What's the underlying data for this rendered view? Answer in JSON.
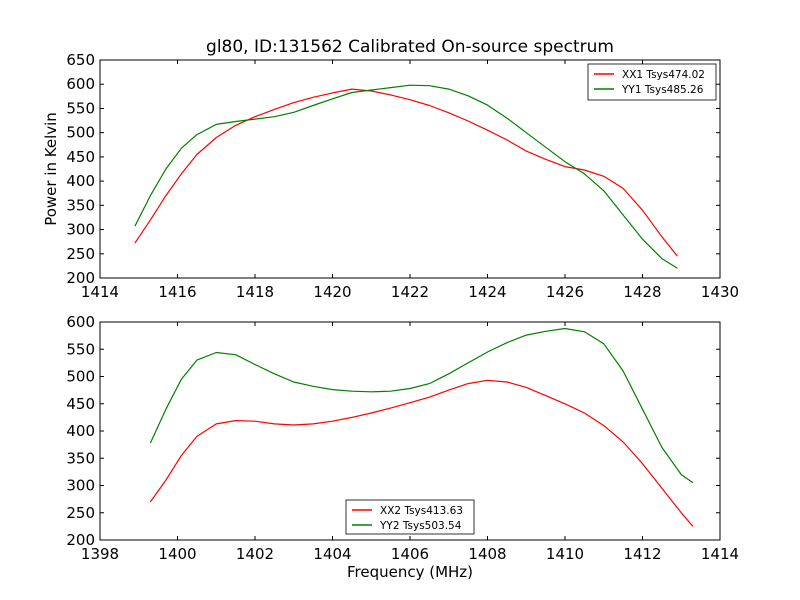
{
  "figure": {
    "title": "gl80, ID:131562 Calibrated On-source spectrum"
  },
  "chart_data": [
    {
      "type": "line",
      "title": "gl80, ID:131562 Calibrated On-source spectrum",
      "xlabel": "",
      "ylabel": "Power in Kelvin",
      "xlim": [
        1414,
        1430
      ],
      "ylim": [
        200,
        650
      ],
      "xticks": [
        1414,
        1416,
        1418,
        1420,
        1422,
        1424,
        1426,
        1428,
        1430
      ],
      "yticks": [
        200,
        250,
        300,
        350,
        400,
        450,
        500,
        550,
        600,
        650
      ],
      "grid": false,
      "legend": "top-right",
      "series": [
        {
          "name": "XX1 Tsys474.02",
          "color": "#ff0000",
          "x": [
            1414.9,
            1415.3,
            1415.7,
            1416.1,
            1416.5,
            1417.0,
            1417.5,
            1418.0,
            1418.5,
            1419.0,
            1419.5,
            1420.0,
            1420.5,
            1421.0,
            1421.5,
            1422.0,
            1422.5,
            1423.0,
            1423.5,
            1424.0,
            1424.5,
            1425.0,
            1425.5,
            1426.0,
            1426.5,
            1427.0,
            1427.5,
            1428.0,
            1428.5,
            1428.9
          ],
          "y": [
            272,
            320,
            370,
            415,
            455,
            490,
            515,
            533,
            548,
            562,
            573,
            582,
            590,
            586,
            578,
            568,
            556,
            541,
            524,
            505,
            485,
            462,
            445,
            430,
            423,
            410,
            385,
            340,
            285,
            245
          ]
        },
        {
          "name": "YY1 Tsys485.26",
          "color": "#008000",
          "x": [
            1414.9,
            1415.3,
            1415.7,
            1416.1,
            1416.5,
            1417.0,
            1417.5,
            1418.0,
            1418.5,
            1419.0,
            1419.5,
            1420.0,
            1420.5,
            1421.0,
            1421.5,
            1422.0,
            1422.5,
            1423.0,
            1423.5,
            1424.0,
            1424.5,
            1425.0,
            1425.5,
            1426.0,
            1426.5,
            1427.0,
            1427.5,
            1428.0,
            1428.5,
            1428.9
          ],
          "y": [
            307,
            370,
            425,
            468,
            496,
            517,
            523,
            528,
            533,
            542,
            556,
            570,
            583,
            588,
            593,
            598,
            597,
            590,
            576,
            557,
            530,
            500,
            470,
            440,
            415,
            380,
            330,
            280,
            240,
            220
          ]
        }
      ]
    },
    {
      "type": "line",
      "title": "",
      "xlabel": "Frequency (MHz)",
      "ylabel": "",
      "xlim": [
        1398,
        1414
      ],
      "ylim": [
        200,
        600
      ],
      "xticks": [
        1398,
        1400,
        1402,
        1404,
        1406,
        1408,
        1410,
        1412,
        1414
      ],
      "yticks": [
        200,
        250,
        300,
        350,
        400,
        450,
        500,
        550,
        600
      ],
      "grid": false,
      "legend": "bottom-center",
      "series": [
        {
          "name": "XX2 Tsys413.63",
          "color": "#ff0000",
          "x": [
            1399.3,
            1399.7,
            1400.1,
            1400.5,
            1401.0,
            1401.5,
            1402.0,
            1402.5,
            1403.0,
            1403.5,
            1404.0,
            1404.5,
            1405.0,
            1405.5,
            1406.0,
            1406.5,
            1407.0,
            1407.5,
            1408.0,
            1408.5,
            1409.0,
            1409.5,
            1410.0,
            1410.5,
            1411.0,
            1411.5,
            1412.0,
            1412.5,
            1413.0,
            1413.3
          ],
          "y": [
            270,
            310,
            355,
            390,
            413,
            419,
            418,
            413,
            411,
            413,
            418,
            425,
            433,
            442,
            452,
            462,
            475,
            487,
            493,
            490,
            480,
            465,
            450,
            433,
            410,
            380,
            340,
            295,
            250,
            225
          ]
        },
        {
          "name": "YY2 Tsys503.54",
          "color": "#008000",
          "x": [
            1399.3,
            1399.7,
            1400.1,
            1400.5,
            1401.0,
            1401.5,
            1402.0,
            1402.5,
            1403.0,
            1403.5,
            1404.0,
            1404.5,
            1405.0,
            1405.5,
            1406.0,
            1406.5,
            1407.0,
            1407.5,
            1408.0,
            1408.5,
            1409.0,
            1409.5,
            1410.0,
            1410.5,
            1411.0,
            1411.5,
            1412.0,
            1412.5,
            1413.0,
            1413.3
          ],
          "y": [
            378,
            440,
            495,
            530,
            544,
            540,
            522,
            505,
            490,
            482,
            476,
            473,
            472,
            473,
            478,
            487,
            505,
            525,
            545,
            562,
            576,
            583,
            588,
            582,
            560,
            510,
            440,
            370,
            320,
            305
          ]
        }
      ]
    }
  ]
}
